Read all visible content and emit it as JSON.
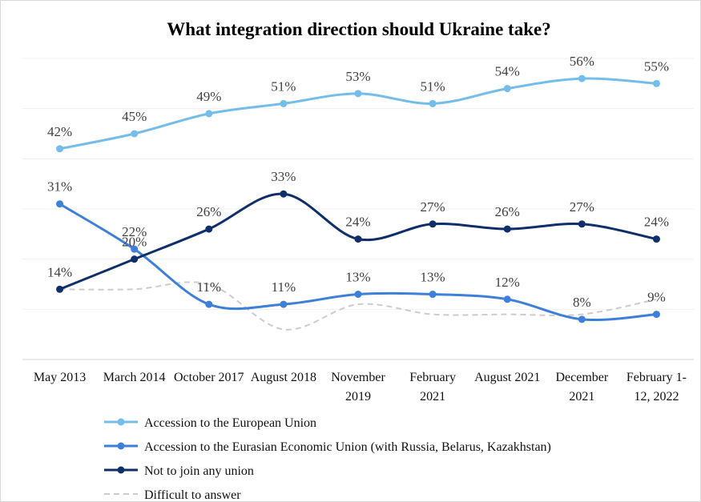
{
  "chart_data": {
    "type": "line",
    "title": "What integration direction should Ukraine take?",
    "categories": [
      "May 2013",
      "March 2014",
      "October 2017",
      "August 2018",
      "November 2019",
      "February 2021",
      "August 2021",
      "December 2021",
      "February 1-12, 2022"
    ],
    "series": [
      {
        "name": "Accession to the European Union",
        "color": "#74bdeb",
        "values": [
          42,
          45,
          49,
          51,
          53,
          51,
          54,
          56,
          55
        ],
        "value_labels": [
          "42%",
          "45%",
          "49%",
          "51%",
          "53%",
          "51%",
          "54%",
          "56%",
          "55%"
        ]
      },
      {
        "name": "Accession to the Eurasian Economic Union (with Russia, Belarus, Kazakhstan)",
        "color": "#3d7fd9",
        "values": [
          31,
          22,
          11,
          11,
          13,
          13,
          12,
          8,
          9
        ],
        "value_labels": [
          "31%",
          "22%",
          "11%",
          "11%",
          "13%",
          "13%",
          "12%",
          "8%",
          "9%"
        ]
      },
      {
        "name": "Not to join any union",
        "color": "#0f2f6b",
        "values": [
          14,
          20,
          26,
          33,
          24,
          27,
          26,
          27,
          24
        ],
        "value_labels": [
          "14%",
          "20%",
          "26%",
          "33%",
          "24%",
          "27%",
          "26%",
          "27%",
          "24%"
        ]
      },
      {
        "name": "Difficult to answer",
        "color": "#cccccc",
        "dashed": true,
        "values": [
          14,
          14,
          15,
          6,
          11,
          9,
          9,
          9,
          12
        ]
      }
    ],
    "ylim": [
      0,
      60
    ],
    "yticks": [
      0,
      10,
      20,
      30,
      40,
      50,
      60
    ],
    "grid": true,
    "smooth": true,
    "legend": "bottom"
  }
}
